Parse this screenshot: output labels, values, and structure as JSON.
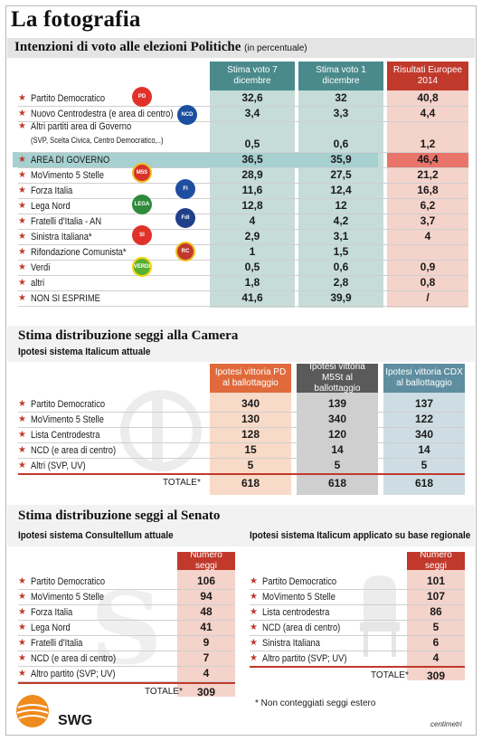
{
  "title": "La fotografia",
  "section1": {
    "title": "Intenzioni di voto alle elezioni Politiche",
    "title_note": "(in percentuale)",
    "columns": [
      "Stima voto 7 dicembre",
      "Stima voto 1 dicembre",
      "Risultati Europee 2014"
    ],
    "rows": [
      {
        "party": "Partito Democratico",
        "values": [
          "32,6",
          "32",
          "40,8"
        ]
      },
      {
        "party": "Nuovo Centrodestra (e area di centro)",
        "values": [
          "3,4",
          "3,3",
          "4,4"
        ]
      },
      {
        "party": "Altri partiti area di Governo",
        "party2": "(SVP, Scelta Civica, Centro Democratico,..)",
        "values": [
          "0,5",
          "0,6",
          "1,2"
        ]
      },
      {
        "party": "AREA DI GOVERNO",
        "values": [
          "36,5",
          "35,9",
          "46,4"
        ]
      },
      {
        "party": "MoVimento 5 Stelle",
        "values": [
          "28,9",
          "27,5",
          "21,2"
        ]
      },
      {
        "party": "Forza Italia",
        "values": [
          "11,6",
          "12,4",
          "16,8"
        ]
      },
      {
        "party": "Lega Nord",
        "values": [
          "12,8",
          "12",
          "6,2"
        ]
      },
      {
        "party": "Fratelli d'Italia - AN",
        "values": [
          "4",
          "4,2",
          "3,7"
        ]
      },
      {
        "party": "Sinistra Italiana*",
        "values": [
          "2,9",
          "3,1",
          "4"
        ]
      },
      {
        "party": "Rifondazione Comunista*",
        "values": [
          "1",
          "1,5",
          ""
        ]
      },
      {
        "party": "Verdi",
        "values": [
          "0,5",
          "0,6",
          "0,9"
        ]
      },
      {
        "party": "altri",
        "values": [
          "1,8",
          "2,8",
          "0,8"
        ]
      },
      {
        "party": "NON SI ESPRIME",
        "values": [
          "41,6",
          "39,9",
          "/"
        ]
      }
    ]
  },
  "section2": {
    "title": "Stima distribuzione seggi alla Camera",
    "subtitle": "Ipotesi sistema Italicum attuale",
    "columns": [
      "Ipotesi vittoria PD al ballottaggio",
      "Ipotesi vittoria M5St al ballottaggio",
      "Ipotesi vittoria CDX al ballottaggio"
    ],
    "rows": [
      {
        "party": "Partito Democratico",
        "values": [
          "340",
          "139",
          "137"
        ]
      },
      {
        "party": "MoVimento 5 Stelle",
        "values": [
          "130",
          "340",
          "122"
        ]
      },
      {
        "party": "Lista Centrodestra",
        "values": [
          "128",
          "120",
          "340"
        ]
      },
      {
        "party": "NCD (e area di centro)",
        "values": [
          "15",
          "14",
          "14"
        ]
      },
      {
        "party": "Altri (SVP, UV)",
        "values": [
          "5",
          "5",
          "5"
        ]
      }
    ],
    "total_label": "TOTALE*",
    "totals": [
      "618",
      "618",
      "618"
    ]
  },
  "section3": {
    "title": "Stima distribuzione seggi al Senato",
    "left": {
      "subtitle": "Ipotesi sistema Consultellum attuale",
      "column": "Numero seggi",
      "rows": [
        {
          "party": "Partito Democratico",
          "value": "106"
        },
        {
          "party": "MoVimento 5 Stelle",
          "value": "94"
        },
        {
          "party": "Forza Italia",
          "value": "48"
        },
        {
          "party": "Lega Nord",
          "value": "41"
        },
        {
          "party": "Fratelli d'Italia",
          "value": "9"
        },
        {
          "party": "NCD (e area di centro)",
          "value": "7"
        },
        {
          "party": "Altro partito (SVP; UV)",
          "value": "4"
        }
      ],
      "total_label": "TOTALE*",
      "total": "309"
    },
    "right": {
      "subtitle": "Ipotesi sistema Italicum applicato su base regionale",
      "column": "Numero seggi",
      "rows": [
        {
          "party": "Partito Democratico",
          "value": "101"
        },
        {
          "party": "MoVimento 5 Stelle",
          "value": "107"
        },
        {
          "party": "Lista centrodestra",
          "value": "86"
        },
        {
          "party": "NCD (area di centro)",
          "value": "5"
        },
        {
          "party": "Sinistra Italiana",
          "value": "6"
        },
        {
          "party": "Altro partito (SVP; UV)",
          "value": "4"
        }
      ],
      "total_label": "TOTALE*",
      "total": "309"
    },
    "note": "* Non conteggiati seggi estero"
  },
  "footer": {
    "brand": "SWG",
    "credit": "centimetri"
  },
  "logos": {
    "pd": "PD",
    "ncd": "NCD",
    "m5s": "M5S",
    "fi": "FI",
    "lega": "LEGA",
    "fdi": "FdI",
    "si": "SI",
    "rc": "RC",
    "verdi": "VERDI"
  },
  "colors": {
    "teal_header": "#4a8a8c",
    "teal_band": "#c5dcd8",
    "red_header": "#c0392b",
    "pink_band": "#f4d3cb",
    "orange_header": "#e06a3b",
    "orange_band": "#f8dac8",
    "grey_header": "#5a5a5a",
    "grey_band": "#cfcfcf",
    "steel_header": "#5e8ea0",
    "steel_band": "#cddde3",
    "highlight_row": "#a7d0d0",
    "highlight_red": "#e9746a"
  }
}
